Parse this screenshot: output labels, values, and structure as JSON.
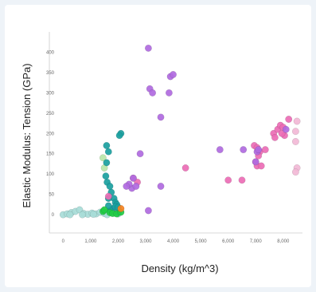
{
  "chart_data": {
    "type": "scatter",
    "title": "",
    "xlabel": "Density (kg/m^3)",
    "ylabel": "Elastic Modulus: Tension (GPa)",
    "xlim": [
      -500,
      8700
    ],
    "ylim": [
      -45,
      450
    ],
    "x_ticks": [
      0,
      1000,
      2000,
      3000,
      4000,
      5000,
      6000,
      7000,
      8000
    ],
    "x_tick_labels": [
      "0",
      "1,000",
      "2,000",
      "3,000",
      "4,000",
      "5,000",
      "6,000",
      "7,000",
      "8,000"
    ],
    "y_ticks": [
      0,
      50,
      100,
      150,
      200,
      250,
      300,
      350,
      400
    ],
    "y_tick_labels": [
      "0",
      "50",
      "100",
      "150",
      "200",
      "250",
      "300",
      "350",
      "400"
    ],
    "grid": false,
    "legend": "none",
    "series": [
      {
        "color": "#a8dcd8",
        "points": [
          [
            0,
            0
          ],
          [
            150,
            2
          ],
          [
            300,
            5
          ],
          [
            450,
            8
          ],
          [
            600,
            12
          ],
          [
            750,
            3
          ],
          [
            900,
            1
          ],
          [
            1050,
            4
          ],
          [
            1200,
            2
          ],
          [
            1350,
            6
          ],
          [
            1500,
            3
          ],
          [
            1650,
            8
          ],
          [
            1800,
            5
          ],
          [
            2000,
            2
          ],
          [
            250,
            0
          ],
          [
            700,
            0
          ],
          [
            1100,
            1
          ],
          [
            1600,
            0
          ]
        ]
      },
      {
        "color": "#b8e6a8",
        "points": [
          [
            1500,
            115
          ],
          [
            1450,
            140
          ]
        ]
      },
      {
        "color": "#1aa0a0",
        "points": [
          [
            1580,
            170
          ],
          [
            1650,
            155
          ],
          [
            1580,
            128
          ],
          [
            1550,
            95
          ],
          [
            1600,
            80
          ],
          [
            1700,
            70
          ],
          [
            1850,
            40
          ],
          [
            1900,
            30
          ],
          [
            1950,
            25
          ],
          [
            1800,
            15
          ],
          [
            1700,
            10
          ],
          [
            2000,
            5
          ],
          [
            2100,
            200
          ],
          [
            2050,
            195
          ],
          [
            1650,
            22
          ],
          [
            1900,
            20
          ],
          [
            2000,
            18
          ],
          [
            1650,
            40
          ],
          [
            1750,
            55
          ]
        ]
      },
      {
        "color": "#22cc44",
        "points": [
          [
            1450,
            8
          ],
          [
            1700,
            5
          ],
          [
            1800,
            3
          ],
          [
            1950,
            2
          ],
          [
            2100,
            6
          ],
          [
            1500,
            12
          ]
        ]
      },
      {
        "color": "#f58220",
        "points": [
          [
            2100,
            15
          ]
        ]
      },
      {
        "color": "#ec6db5",
        "points": [
          [
            1650,
            45
          ],
          [
            2550,
            90
          ],
          [
            2700,
            80
          ],
          [
            4450,
            115
          ],
          [
            6000,
            85
          ],
          [
            6500,
            85
          ],
          [
            6950,
            170
          ],
          [
            7050,
            165
          ],
          [
            7150,
            155
          ],
          [
            7100,
            145
          ],
          [
            7000,
            130
          ],
          [
            7050,
            120
          ],
          [
            7200,
            120
          ],
          [
            7350,
            160
          ],
          [
            7650,
            200
          ],
          [
            7800,
            210
          ],
          [
            7900,
            220
          ],
          [
            8000,
            215
          ],
          [
            8050,
            195
          ],
          [
            7700,
            190
          ],
          [
            8200,
            235
          ],
          [
            7950,
            200
          ]
        ]
      },
      {
        "color": "#f2b8d6",
        "points": [
          [
            8500,
            230
          ],
          [
            8450,
            205
          ],
          [
            8450,
            180
          ],
          [
            8500,
            115
          ],
          [
            8450,
            105
          ]
        ]
      },
      {
        "color": "#b06ae0",
        "points": [
          [
            3100,
            410
          ],
          [
            3150,
            310
          ],
          [
            3250,
            300
          ],
          [
            3550,
            240
          ],
          [
            3900,
            340
          ],
          [
            4000,
            345
          ],
          [
            3850,
            300
          ],
          [
            2800,
            150
          ],
          [
            2500,
            65
          ],
          [
            2400,
            75
          ],
          [
            2300,
            70
          ],
          [
            2650,
            70
          ],
          [
            2550,
            90
          ],
          [
            3100,
            10
          ],
          [
            3550,
            70
          ],
          [
            5700,
            160
          ],
          [
            6550,
            160
          ],
          [
            7000,
            130
          ],
          [
            7050,
            155
          ],
          [
            7100,
            160
          ],
          [
            8100,
            210
          ]
        ]
      }
    ]
  }
}
